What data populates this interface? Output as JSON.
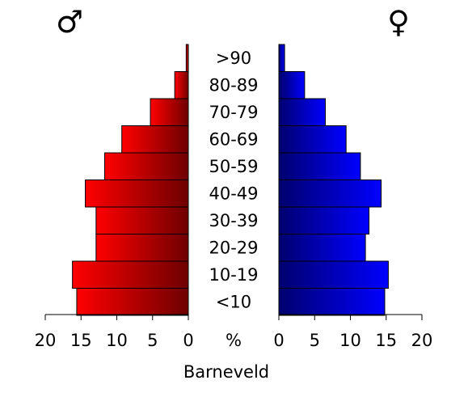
{
  "chart_data": {
    "type": "bar",
    "subtype": "population-pyramid",
    "title": "",
    "xlabel": "Barneveld",
    "unit_label": "%",
    "categories": [
      "<10",
      "10-19",
      "20-29",
      "30-39",
      "40-49",
      "50-59",
      "60-69",
      "70-79",
      "80-89",
      ">90"
    ],
    "series": [
      {
        "name": "♂",
        "side": "left",
        "color_light": "#ff0000",
        "color_dark": "#6e0000",
        "values": [
          15.6,
          16.2,
          12.9,
          12.9,
          14.4,
          11.7,
          9.3,
          5.3,
          1.9,
          0.3
        ]
      },
      {
        "name": "♀",
        "side": "right",
        "color_light": "#0000ff",
        "color_dark": "#00006e",
        "values": [
          14.8,
          15.3,
          12.1,
          12.6,
          14.3,
          11.4,
          9.4,
          6.5,
          3.6,
          0.8
        ]
      }
    ],
    "xlim": [
      0,
      20
    ],
    "xticks": [
      0,
      5,
      10,
      15,
      20
    ],
    "xtick_labels_left": [
      "20",
      "15",
      "10",
      "5",
      "0"
    ],
    "xtick_labels_right": [
      "0",
      "5",
      "10",
      "15",
      "20"
    ],
    "grid": false,
    "legend": "none"
  }
}
